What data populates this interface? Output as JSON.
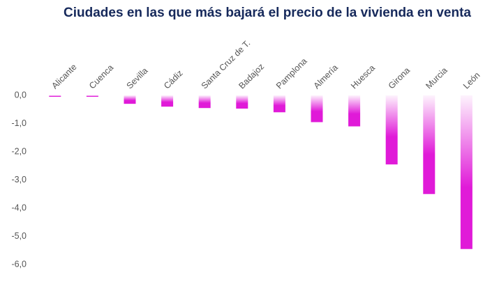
{
  "chart_data": {
    "type": "bar",
    "title": "Ciudades en las que más bajará el precio de la vivienda en venta",
    "categories": [
      "Alicante",
      "Cuenca",
      "Sevilla",
      "Cádiz",
      "Santa Cruz de T.",
      "Badajoz",
      "Pamplona",
      "Almería",
      "Huesca",
      "Girona",
      "Murcia",
      "León"
    ],
    "values": [
      -0.05,
      -0.05,
      -0.3,
      -0.4,
      -0.45,
      -0.47,
      -0.6,
      -0.95,
      -1.1,
      -2.45,
      -3.5,
      -5.45
    ],
    "color": "#e01ad8",
    "ylim": [
      -6,
      0
    ],
    "yticks": [
      {
        "value": 0,
        "label": "0,0"
      },
      {
        "value": -1,
        "label": "-1,0"
      },
      {
        "value": -2,
        "label": "-2,0"
      },
      {
        "value": -3,
        "label": "-3,0"
      },
      {
        "value": -4,
        "label": "-4,0"
      },
      {
        "value": -5,
        "label": "-5,0"
      },
      {
        "value": -6,
        "label": "-6,0"
      }
    ],
    "grid": false
  }
}
